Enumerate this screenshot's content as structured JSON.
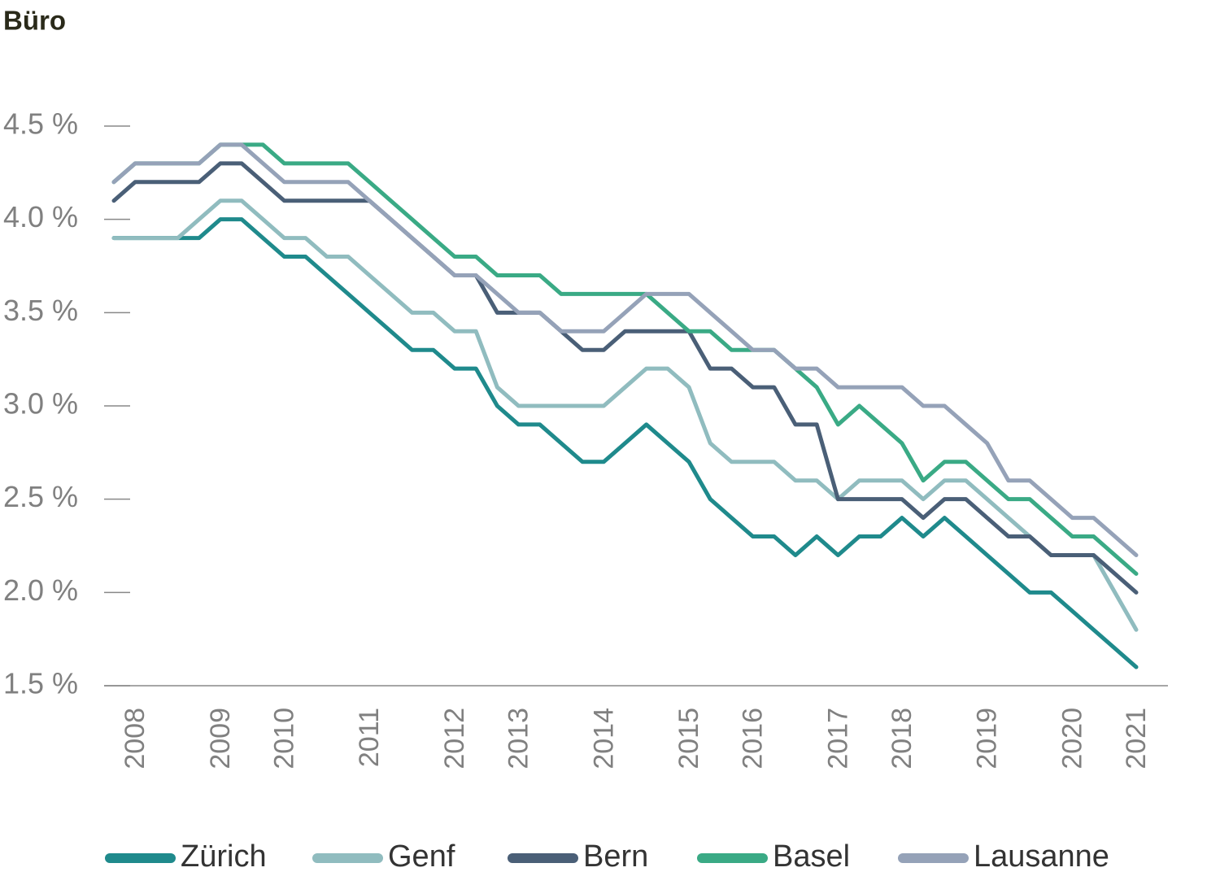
{
  "chart_data": {
    "type": "line",
    "title": "Büro",
    "categories": [
      null,
      "2008",
      null,
      null,
      null,
      "2009",
      null,
      null,
      "2010",
      null,
      null,
      null,
      "2011",
      null,
      null,
      null,
      "2012",
      null,
      null,
      "2013",
      null,
      null,
      null,
      "2014",
      null,
      null,
      null,
      "2015",
      null,
      null,
      "2016",
      null,
      null,
      null,
      "2017",
      null,
      null,
      "2018",
      null,
      null,
      null,
      "2019",
      null,
      null,
      null,
      "2020",
      null,
      null,
      "2021"
    ],
    "series": [
      {
        "name": "Zürich",
        "color": "#1f8a8c",
        "values": [
          3.9,
          3.9,
          3.9,
          3.9,
          3.9,
          4.0,
          4.0,
          3.9,
          3.8,
          3.8,
          3.7,
          3.6,
          3.5,
          3.4,
          3.3,
          3.3,
          3.2,
          3.2,
          3.0,
          2.9,
          2.9,
          2.8,
          2.7,
          2.7,
          2.8,
          2.9,
          2.8,
          2.7,
          2.5,
          2.4,
          2.3,
          2.3,
          2.2,
          2.3,
          2.2,
          2.3,
          2.3,
          2.4,
          2.3,
          2.4,
          2.3,
          2.2,
          2.1,
          2.0,
          2.0,
          1.9,
          1.8,
          1.7,
          1.6
        ]
      },
      {
        "name": "Genf",
        "color": "#90bcbf",
        "values": [
          3.9,
          3.9,
          3.9,
          3.9,
          4.0,
          4.1,
          4.1,
          4.0,
          3.9,
          3.9,
          3.8,
          3.8,
          3.7,
          3.6,
          3.5,
          3.5,
          3.4,
          3.4,
          3.1,
          3.0,
          3.0,
          3.0,
          3.0,
          3.0,
          3.1,
          3.2,
          3.2,
          3.1,
          2.8,
          2.7,
          2.7,
          2.7,
          2.6,
          2.6,
          2.5,
          2.6,
          2.6,
          2.6,
          2.5,
          2.6,
          2.6,
          2.5,
          2.4,
          2.3,
          2.2,
          2.2,
          2.2,
          2.0,
          1.8
        ]
      },
      {
        "name": "Bern",
        "color": "#4a5f77",
        "values": [
          4.1,
          4.2,
          4.2,
          4.2,
          4.2,
          4.3,
          4.3,
          4.2,
          4.1,
          4.1,
          4.1,
          4.1,
          4.1,
          4.0,
          3.9,
          3.8,
          3.7,
          3.7,
          3.5,
          3.5,
          3.5,
          3.4,
          3.3,
          3.3,
          3.4,
          3.4,
          3.4,
          3.4,
          3.2,
          3.2,
          3.1,
          3.1,
          2.9,
          2.9,
          2.5,
          2.5,
          2.5,
          2.5,
          2.4,
          2.5,
          2.5,
          2.4,
          2.3,
          2.3,
          2.2,
          2.2,
          2.2,
          2.1,
          2.0
        ]
      },
      {
        "name": "Basel",
        "color": "#3aaa85",
        "values": [
          4.2,
          4.3,
          4.3,
          4.3,
          4.3,
          4.4,
          4.4,
          4.4,
          4.3,
          4.3,
          4.3,
          4.3,
          4.2,
          4.1,
          4.0,
          3.9,
          3.8,
          3.8,
          3.7,
          3.7,
          3.7,
          3.6,
          3.6,
          3.6,
          3.6,
          3.6,
          3.5,
          3.4,
          3.4,
          3.3,
          3.3,
          3.3,
          3.2,
          3.1,
          2.9,
          3.0,
          2.9,
          2.8,
          2.6,
          2.7,
          2.7,
          2.6,
          2.5,
          2.5,
          2.4,
          2.3,
          2.3,
          2.2,
          2.1
        ]
      },
      {
        "name": "Lausanne",
        "color": "#95a2b8",
        "values": [
          4.2,
          4.3,
          4.3,
          4.3,
          4.3,
          4.4,
          4.4,
          4.3,
          4.2,
          4.2,
          4.2,
          4.2,
          4.1,
          4.0,
          3.9,
          3.8,
          3.7,
          3.7,
          3.6,
          3.5,
          3.5,
          3.4,
          3.4,
          3.4,
          3.5,
          3.6,
          3.6,
          3.6,
          3.5,
          3.4,
          3.3,
          3.3,
          3.2,
          3.2,
          3.1,
          3.1,
          3.1,
          3.1,
          3.0,
          3.0,
          2.9,
          2.8,
          2.6,
          2.6,
          2.5,
          2.4,
          2.4,
          2.3,
          2.2
        ]
      }
    ],
    "ylim": [
      1.5,
      4.5
    ],
    "yticks": [
      {
        "value": 1.5,
        "label": "1.5 %"
      },
      {
        "value": 2.0,
        "label": "2.0 %"
      },
      {
        "value": 2.5,
        "label": "2.5 %"
      },
      {
        "value": 3.0,
        "label": "3.0 %"
      },
      {
        "value": 3.5,
        "label": "3.5 %"
      },
      {
        "value": 4.0,
        "label": "4.0 %"
      },
      {
        "value": 4.5,
        "label": "4.5 %"
      }
    ],
    "legend": "bottom"
  }
}
